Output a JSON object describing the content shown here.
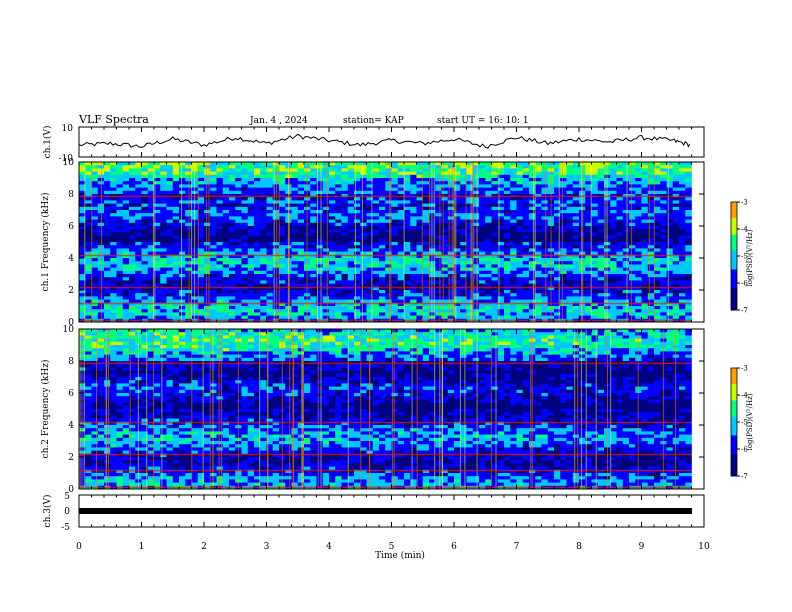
{
  "header": {
    "title": "VLF Spectra",
    "date": "Jan. 4 , 2024",
    "station": "station= KAP",
    "start": "start UT = 16: 10: 1"
  },
  "chart_data": [
    {
      "type": "line",
      "panel": "ch1-waveform",
      "ylabel": "ch.1(V)",
      "ylim": [
        -10,
        10
      ],
      "y_ticks": [
        "10",
        "-10"
      ],
      "xlim": [
        0,
        10
      ],
      "series": [
        {
          "x": [
            0,
            0.5,
            1,
            1.5,
            2,
            2.5,
            3,
            3.5,
            4,
            4.5,
            5,
            5.5,
            6,
            6.5,
            7,
            7.5,
            8,
            8.5,
            9,
            9.5,
            9.8
          ],
          "values": [
            -2,
            -1,
            -3,
            2,
            -2,
            3,
            -1,
            4,
            1,
            -2,
            1,
            -1,
            2,
            -3,
            3,
            -1,
            2,
            0,
            3,
            1,
            -2
          ]
        }
      ]
    },
    {
      "type": "heatmap",
      "panel": "ch1-spectrogram",
      "ylabel": "ch.1 Frequency (kHz)",
      "ylim": [
        0,
        10
      ],
      "y_ticks": [
        "0",
        "2",
        "4",
        "6",
        "8",
        "10"
      ],
      "xlim": [
        0,
        9.8
      ],
      "colorbar": {
        "label": "log(PSD)(V²/Hz)",
        "range": [
          -7,
          -3
        ],
        "ticks": [
          "-3",
          "-4",
          "-5",
          "-6",
          "-7"
        ]
      }
    },
    {
      "type": "heatmap",
      "panel": "ch2-spectrogram",
      "ylabel": "ch.2 Frequency (kHz)",
      "ylim": [
        0,
        10
      ],
      "y_ticks": [
        "0",
        "2",
        "4",
        "6",
        "8",
        "10"
      ],
      "xlim": [
        0,
        9.8
      ],
      "colorbar": {
        "label": "log(PSD)(V²/Hz)",
        "range": [
          -7,
          -3
        ],
        "ticks": [
          "-3",
          "-4",
          "-5",
          "-6",
          "-7"
        ]
      }
    },
    {
      "type": "line",
      "panel": "ch3-signal",
      "ylabel": "ch.3(V)",
      "ylim": [
        -5,
        5
      ],
      "y_ticks": [
        "5",
        "0",
        "-5"
      ],
      "xlim": [
        0,
        10
      ],
      "series": [
        {
          "x": [
            0,
            9.8
          ],
          "values": [
            0,
            0
          ]
        }
      ]
    }
  ],
  "x_axis": {
    "label": "Time (min)",
    "ticks": [
      "0",
      "1",
      "2",
      "3",
      "4",
      "5",
      "6",
      "7",
      "8",
      "9",
      "10"
    ]
  }
}
